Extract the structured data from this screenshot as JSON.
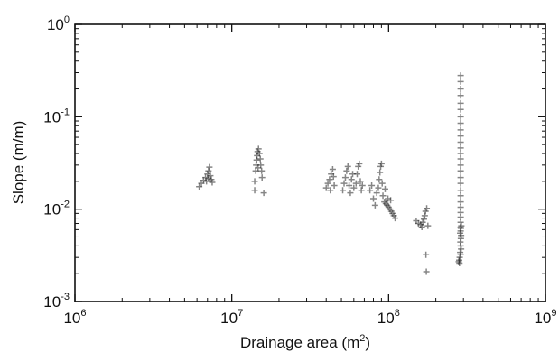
{
  "chart_data": {
    "type": "scatter",
    "title": "",
    "xlabel": "Drainage area (m",
    "xlabel_sup": "2",
    "xlabel_close": ")",
    "ylabel": "Slope (m/m)",
    "xscale": "log",
    "yscale": "log",
    "xlim": [
      1000000,
      1000000000
    ],
    "ylim": [
      0.001,
      1
    ],
    "grid": false,
    "legend": "none",
    "marker": "plus",
    "x_ticks": [
      {
        "base": "10",
        "exp": "6"
      },
      {
        "base": "10",
        "exp": "7"
      },
      {
        "base": "10",
        "exp": "8"
      },
      {
        "base": "10",
        "exp": "9"
      }
    ],
    "y_ticks": [
      {
        "base": "10",
        "exp": "-3"
      },
      {
        "base": "10",
        "exp": "-2"
      },
      {
        "base": "10",
        "exp": "-1"
      },
      {
        "base": "10",
        "exp": "0"
      }
    ],
    "points": [
      {
        "x": 6200000,
        "y": 0.0175
      },
      {
        "x": 6400000,
        "y": 0.019
      },
      {
        "x": 6600000,
        "y": 0.0205
      },
      {
        "x": 6800000,
        "y": 0.022
      },
      {
        "x": 6900000,
        "y": 0.02
      },
      {
        "x": 7000000,
        "y": 0.024
      },
      {
        "x": 7100000,
        "y": 0.026
      },
      {
        "x": 7200000,
        "y": 0.0285
      },
      {
        "x": 7300000,
        "y": 0.023
      },
      {
        "x": 7400000,
        "y": 0.021
      },
      {
        "x": 7500000,
        "y": 0.0195
      },
      {
        "x": 7100000,
        "y": 0.0215
      },
      {
        "x": 14000000,
        "y": 0.016
      },
      {
        "x": 14000000,
        "y": 0.02
      },
      {
        "x": 14200000,
        "y": 0.026
      },
      {
        "x": 14300000,
        "y": 0.03
      },
      {
        "x": 14400000,
        "y": 0.034
      },
      {
        "x": 14500000,
        "y": 0.038
      },
      {
        "x": 14600000,
        "y": 0.042
      },
      {
        "x": 14800000,
        "y": 0.045
      },
      {
        "x": 15000000,
        "y": 0.04
      },
      {
        "x": 15200000,
        "y": 0.035
      },
      {
        "x": 15300000,
        "y": 0.03
      },
      {
        "x": 15500000,
        "y": 0.026
      },
      {
        "x": 15600000,
        "y": 0.022
      },
      {
        "x": 16000000,
        "y": 0.015
      },
      {
        "x": 14700000,
        "y": 0.028
      },
      {
        "x": 40000000,
        "y": 0.017
      },
      {
        "x": 41000000,
        "y": 0.019
      },
      {
        "x": 42000000,
        "y": 0.021
      },
      {
        "x": 43000000,
        "y": 0.024
      },
      {
        "x": 44000000,
        "y": 0.027
      },
      {
        "x": 45000000,
        "y": 0.018
      },
      {
        "x": 42500000,
        "y": 0.016
      },
      {
        "x": 44500000,
        "y": 0.0225
      },
      {
        "x": 51000000,
        "y": 0.016
      },
      {
        "x": 52000000,
        "y": 0.019
      },
      {
        "x": 53000000,
        "y": 0.022
      },
      {
        "x": 54000000,
        "y": 0.026
      },
      {
        "x": 55000000,
        "y": 0.029
      },
      {
        "x": 56000000,
        "y": 0.018
      },
      {
        "x": 57000000,
        "y": 0.015
      },
      {
        "x": 58000000,
        "y": 0.021
      },
      {
        "x": 59000000,
        "y": 0.024
      },
      {
        "x": 60000000,
        "y": 0.017
      },
      {
        "x": 62000000,
        "y": 0.019
      },
      {
        "x": 63000000,
        "y": 0.024
      },
      {
        "x": 64000000,
        "y": 0.029
      },
      {
        "x": 65000000,
        "y": 0.031
      },
      {
        "x": 66000000,
        "y": 0.02
      },
      {
        "x": 67000000,
        "y": 0.016
      },
      {
        "x": 68000000,
        "y": 0.018
      },
      {
        "x": 76000000,
        "y": 0.016
      },
      {
        "x": 78000000,
        "y": 0.018
      },
      {
        "x": 80000000,
        "y": 0.013
      },
      {
        "x": 82000000,
        "y": 0.011
      },
      {
        "x": 84000000,
        "y": 0.015
      },
      {
        "x": 86000000,
        "y": 0.017
      },
      {
        "x": 87000000,
        "y": 0.021
      },
      {
        "x": 88000000,
        "y": 0.025
      },
      {
        "x": 89000000,
        "y": 0.029
      },
      {
        "x": 90000000,
        "y": 0.031
      },
      {
        "x": 91000000,
        "y": 0.019
      },
      {
        "x": 92000000,
        "y": 0.014
      },
      {
        "x": 94000000,
        "y": 0.012
      },
      {
        "x": 96000000,
        "y": 0.0115
      },
      {
        "x": 98000000,
        "y": 0.011
      },
      {
        "x": 100000000,
        "y": 0.0105
      },
      {
        "x": 102000000,
        "y": 0.01
      },
      {
        "x": 104000000,
        "y": 0.0095
      },
      {
        "x": 106000000,
        "y": 0.009
      },
      {
        "x": 108000000,
        "y": 0.0085
      },
      {
        "x": 110000000,
        "y": 0.008
      },
      {
        "x": 95000000,
        "y": 0.0165
      },
      {
        "x": 99000000,
        "y": 0.013
      },
      {
        "x": 103000000,
        "y": 0.0125
      },
      {
        "x": 150000000,
        "y": 0.0075
      },
      {
        "x": 155000000,
        "y": 0.007
      },
      {
        "x": 160000000,
        "y": 0.0068
      },
      {
        "x": 165000000,
        "y": 0.0072
      },
      {
        "x": 170000000,
        "y": 0.0085
      },
      {
        "x": 172000000,
        "y": 0.0095
      },
      {
        "x": 175000000,
        "y": 0.0102
      },
      {
        "x": 178000000,
        "y": 0.0066
      },
      {
        "x": 173000000,
        "y": 0.0032
      },
      {
        "x": 174000000,
        "y": 0.0021
      },
      {
        "x": 163000000,
        "y": 0.0064
      },
      {
        "x": 168000000,
        "y": 0.0078
      },
      {
        "x": 288000000,
        "y": 0.28
      },
      {
        "x": 288000000,
        "y": 0.24
      },
      {
        "x": 288000000,
        "y": 0.2
      },
      {
        "x": 288000000,
        "y": 0.17
      },
      {
        "x": 288000000,
        "y": 0.14
      },
      {
        "x": 288000000,
        "y": 0.12
      },
      {
        "x": 288000000,
        "y": 0.1
      },
      {
        "x": 288000000,
        "y": 0.085
      },
      {
        "x": 288000000,
        "y": 0.072
      },
      {
        "x": 288000000,
        "y": 0.062
      },
      {
        "x": 288000000,
        "y": 0.053
      },
      {
        "x": 288000000,
        "y": 0.046
      },
      {
        "x": 288000000,
        "y": 0.04
      },
      {
        "x": 288000000,
        "y": 0.035
      },
      {
        "x": 288000000,
        "y": 0.03
      },
      {
        "x": 288000000,
        "y": 0.026
      },
      {
        "x": 288000000,
        "y": 0.022
      },
      {
        "x": 288000000,
        "y": 0.019
      },
      {
        "x": 288000000,
        "y": 0.016
      },
      {
        "x": 288000000,
        "y": 0.014
      },
      {
        "x": 288000000,
        "y": 0.012
      },
      {
        "x": 288000000,
        "y": 0.0105
      },
      {
        "x": 288000000,
        "y": 0.0092
      },
      {
        "x": 288000000,
        "y": 0.0082
      },
      {
        "x": 288000000,
        "y": 0.0072
      },
      {
        "x": 288000000,
        "y": 0.0064
      },
      {
        "x": 288000000,
        "y": 0.0058
      },
      {
        "x": 286000000,
        "y": 0.0055
      },
      {
        "x": 290000000,
        "y": 0.0052
      },
      {
        "x": 289000000,
        "y": 0.0048
      },
      {
        "x": 287000000,
        "y": 0.0044
      },
      {
        "x": 288000000,
        "y": 0.004
      },
      {
        "x": 290000000,
        "y": 0.0037
      },
      {
        "x": 286000000,
        "y": 0.0034
      },
      {
        "x": 288000000,
        "y": 0.0032
      },
      {
        "x": 284000000,
        "y": 0.003
      },
      {
        "x": 282000000,
        "y": 0.0028
      },
      {
        "x": 280000000,
        "y": 0.0027
      },
      {
        "x": 283000000,
        "y": 0.0026
      },
      {
        "x": 289000000,
        "y": 0.0062
      },
      {
        "x": 291000000,
        "y": 0.0066
      }
    ]
  }
}
